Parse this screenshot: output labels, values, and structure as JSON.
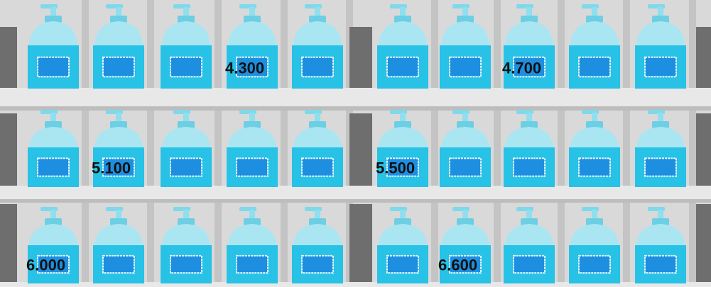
{
  "rows": [
    {
      "bottles": [
        null,
        null,
        null,
        "4.300",
        null,
        null,
        null,
        "4.700",
        null,
        null
      ]
    },
    {
      "bottles": [
        null,
        "5.100",
        null,
        null,
        null,
        "5.500",
        null,
        null,
        null,
        null
      ]
    },
    {
      "bottles": [
        "6.000",
        null,
        null,
        null,
        null,
        null,
        "6.600",
        null,
        null,
        null
      ]
    }
  ]
}
